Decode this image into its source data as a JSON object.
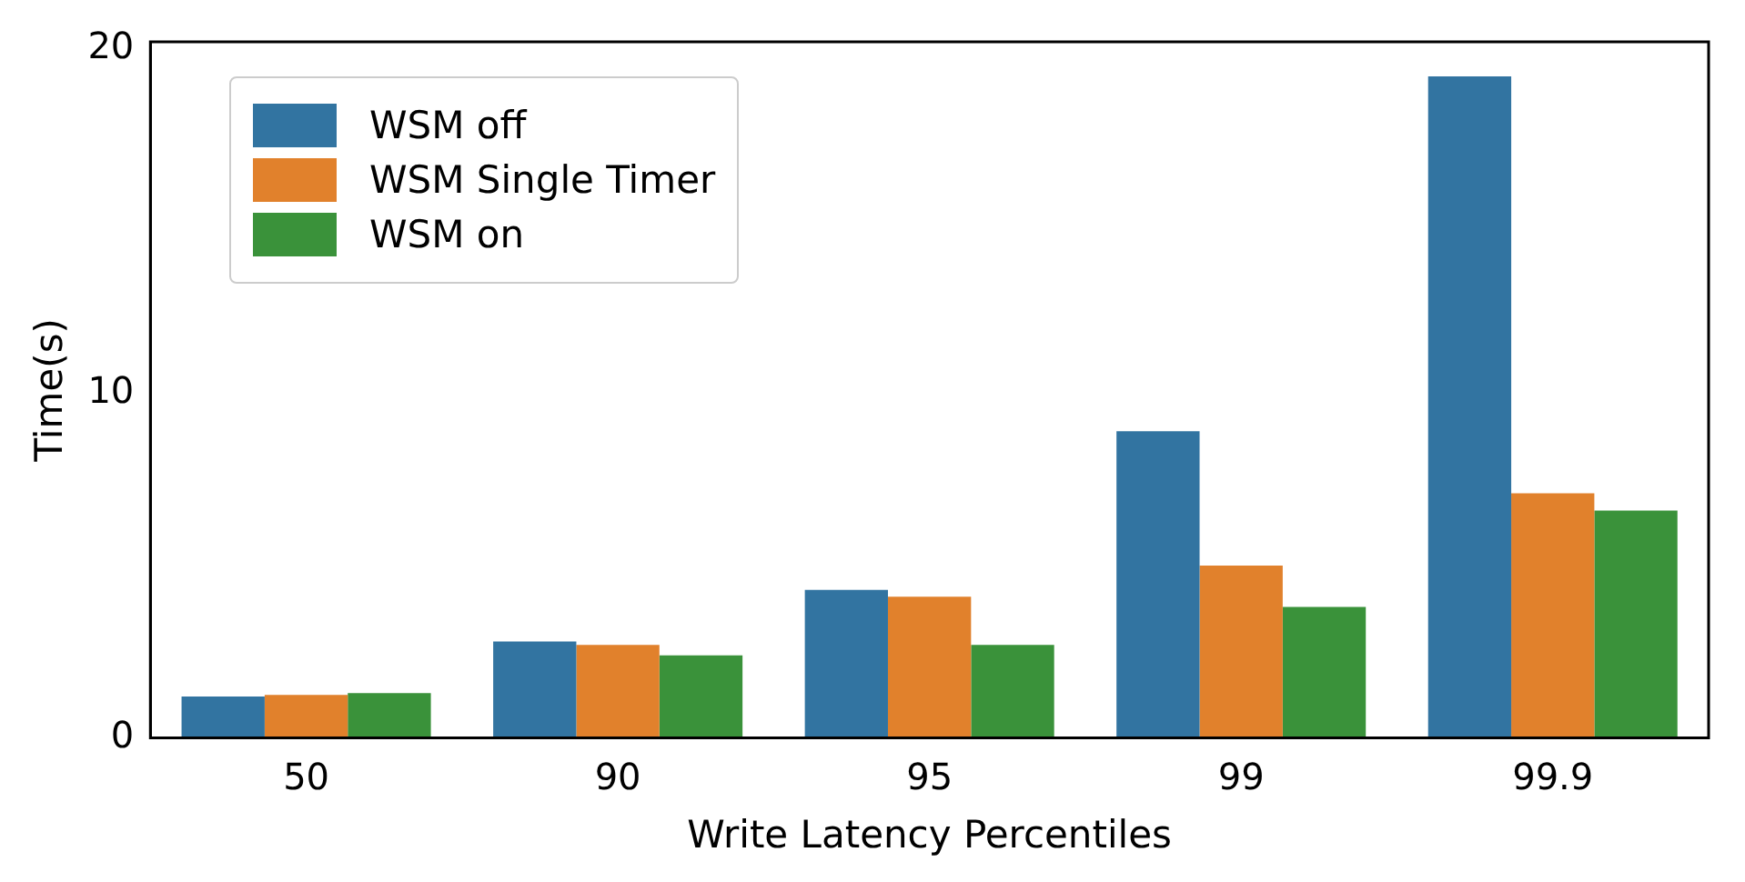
{
  "chart_data": {
    "type": "bar",
    "xlabel": "Write Latency Percentiles",
    "ylabel": "Time(s)",
    "categories": [
      "50",
      "90",
      "95",
      "99",
      "99.9"
    ],
    "series": [
      {
        "name": "WSM off",
        "color": "#3274a1",
        "values": [
          1.2,
          2.8,
          4.3,
          8.9,
          19.2
        ]
      },
      {
        "name": "WSM Single Timer",
        "color": "#e1812c",
        "values": [
          1.25,
          2.7,
          4.1,
          5.0,
          7.1
        ]
      },
      {
        "name": "WSM on",
        "color": "#3a923a",
        "values": [
          1.3,
          2.4,
          2.7,
          3.8,
          6.6
        ]
      }
    ],
    "ylim": [
      0,
      20.2
    ],
    "yticks": [
      0,
      10,
      20
    ],
    "grid": false,
    "legend": "top left"
  }
}
